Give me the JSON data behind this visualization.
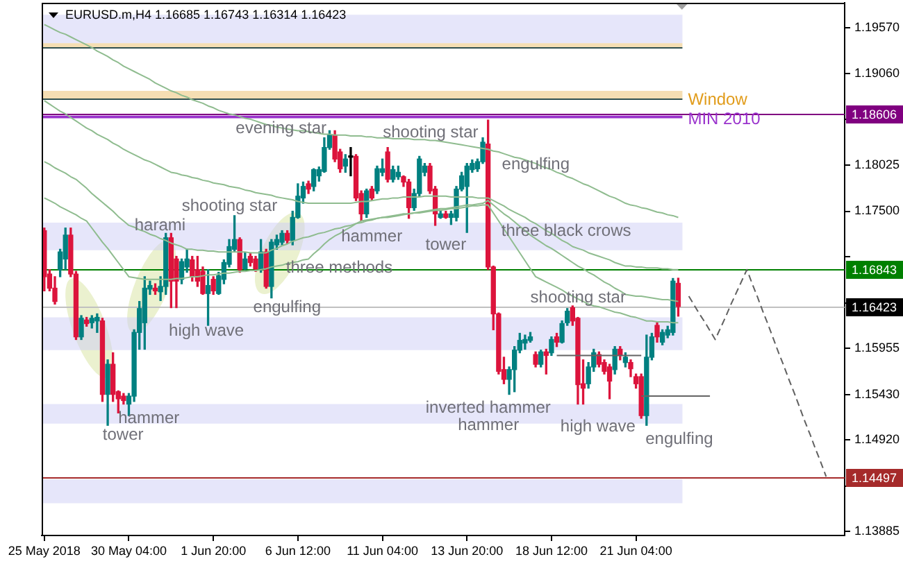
{
  "chart_data": {
    "type": "candlestick",
    "title": "EURUSD.m,H4 1.16685 1.16743 1.16314 1.16423",
    "categories": [
      "25 May 2018",
      null,
      null,
      null,
      null,
      null,
      null,
      null,
      null,
      null,
      null,
      null,
      null,
      null,
      null,
      null,
      "30 May 04:00",
      null,
      null,
      null,
      null,
      null,
      null,
      null,
      null,
      null,
      null,
      null,
      null,
      null,
      null,
      null,
      "1 Jun 20:00",
      null,
      null,
      null,
      null,
      null,
      null,
      null,
      null,
      null,
      null,
      null,
      null,
      null,
      null,
      null,
      "6 Jun 12:00",
      null,
      null,
      null,
      null,
      null,
      null,
      null,
      null,
      null,
      null,
      null,
      null,
      null,
      null,
      null,
      "11 Jun 04:00",
      null,
      null,
      null,
      null,
      null,
      null,
      null,
      null,
      null,
      null,
      null,
      null,
      null,
      null,
      null,
      "13 Jun 20:00",
      null,
      null,
      null,
      null,
      null,
      null,
      null,
      null,
      null,
      null,
      null,
      null,
      null,
      null,
      null,
      "18 Jun 12:00",
      null,
      null,
      null,
      null,
      null,
      null,
      null,
      null,
      null,
      null,
      null,
      null,
      null,
      null,
      null,
      "21 Jun 04:00",
      null,
      null,
      null,
      null,
      null,
      null,
      null,
      null,
      null,
      null,
      null,
      null,
      null,
      null,
      null,
      null,
      null,
      null,
      null,
      null,
      null,
      null,
      null,
      null,
      null,
      null,
      null,
      null,
      null,
      null,
      null,
      null,
      null,
      null,
      null,
      null,
      null,
      null,
      null
    ],
    "ohlc": [
      [
        1.1728,
        1.1731,
        1.166,
        1.1676
      ],
      [
        1.1679,
        1.1684,
        1.166,
        1.1663
      ],
      [
        1.1663,
        1.1676,
        1.1645,
        1.1648
      ],
      [
        1.1684,
        1.1707,
        1.1676,
        1.1704
      ],
      [
        1.1696,
        1.1731,
        1.1684,
        1.1723
      ],
      [
        1.1723,
        1.1731,
        1.1676,
        1.1679
      ],
      [
        1.1679,
        1.1682,
        1.1605,
        1.1608
      ],
      [
        1.1608,
        1.1632,
        1.1605,
        1.1629
      ],
      [
        1.1627,
        1.163,
        1.162,
        1.1623
      ],
      [
        1.1624,
        1.1632,
        1.1618,
        1.1629
      ],
      [
        1.1626,
        1.1634,
        1.1613,
        1.163
      ],
      [
        1.1626,
        1.1629,
        1.1535,
        1.1543
      ],
      [
        1.1543,
        1.1582,
        1.1508,
        1.1577
      ],
      [
        1.1577,
        1.159,
        1.1535,
        1.1543
      ],
      [
        1.1546,
        1.1547,
        1.1522,
        1.1538
      ],
      [
        1.1541,
        1.1544,
        1.1532,
        1.1536
      ],
      [
        1.1532,
        1.1544,
        1.1519,
        1.1541
      ],
      [
        1.1541,
        1.1616,
        1.1535,
        1.1613
      ],
      [
        1.1613,
        1.1648,
        1.1594,
        1.164
      ],
      [
        1.1624,
        1.1676,
        1.1594,
        1.1663
      ],
      [
        1.1662,
        1.1671,
        1.1656,
        1.1666
      ],
      [
        1.1663,
        1.1668,
        1.1656,
        1.166
      ],
      [
        1.1659,
        1.1676,
        1.1649,
        1.1665
      ],
      [
        1.1665,
        1.1725,
        1.1656,
        1.172
      ],
      [
        1.172,
        1.1725,
        1.1641,
        1.1671
      ],
      [
        1.1696,
        1.1699,
        1.1641,
        1.1671
      ],
      [
        1.1673,
        1.1696,
        1.1668,
        1.1693
      ],
      [
        1.1687,
        1.1707,
        1.1681,
        1.1696
      ],
      [
        1.1695,
        1.1699,
        1.1671,
        1.1676
      ],
      [
        1.1684,
        1.1699,
        1.1665,
        1.1671
      ],
      [
        1.1682,
        1.1687,
        1.1656,
        1.1657
      ],
      [
        1.1657,
        1.1684,
        1.1621,
        1.1666
      ],
      [
        1.1673,
        1.1676,
        1.1656,
        1.166
      ],
      [
        1.1657,
        1.1681,
        1.1656,
        1.1677
      ],
      [
        1.1673,
        1.1695,
        1.1668,
        1.1692
      ],
      [
        1.169,
        1.1718,
        1.1687,
        1.171
      ],
      [
        1.1707,
        1.1745,
        1.1704,
        1.1718
      ],
      [
        1.1718,
        1.172,
        1.1681,
        1.1684
      ],
      [
        1.1685,
        1.1703,
        1.1684,
        1.1696
      ],
      [
        1.1699,
        1.1703,
        1.1688,
        1.1692
      ],
      [
        1.1696,
        1.1699,
        1.1682,
        1.1685
      ],
      [
        1.1685,
        1.1718,
        1.1681,
        1.1704
      ],
      [
        1.1704,
        1.1707,
        1.1663,
        1.1665
      ],
      [
        1.1665,
        1.1718,
        1.1652,
        1.1715
      ],
      [
        1.1712,
        1.1723,
        1.1707,
        1.1718
      ],
      [
        1.1715,
        1.1728,
        1.1712,
        1.1725
      ],
      [
        1.1725,
        1.1728,
        1.1714,
        1.1717
      ],
      [
        1.1717,
        1.175,
        1.1712,
        1.1743
      ],
      [
        1.1743,
        1.1781,
        1.1742,
        1.1767
      ],
      [
        1.1765,
        1.1783,
        1.1759,
        1.1778
      ],
      [
        1.1781,
        1.1784,
        1.177,
        1.1775
      ],
      [
        1.1778,
        1.1798,
        1.1773,
        1.1797
      ],
      [
        1.179,
        1.18,
        1.1784,
        1.1797
      ],
      [
        1.1795,
        1.1833,
        1.1794,
        1.1822
      ],
      [
        1.1822,
        1.1841,
        1.182,
        1.1836
      ],
      [
        1.1836,
        1.1841,
        1.1806,
        1.1809
      ],
      [
        1.1817,
        1.182,
        1.1794,
        1.1798
      ],
      [
        1.1801,
        1.1814,
        1.1794,
        1.1809
      ],
      [
        1.1812,
        1.1822,
        1.179,
        1.1811
      ],
      [
        1.1812,
        1.1814,
        1.1762,
        1.1765
      ],
      [
        1.177,
        1.1773,
        1.1739,
        1.1747
      ],
      [
        1.1747,
        1.1775,
        1.1743,
        1.1773
      ],
      [
        1.1775,
        1.1778,
        1.1762,
        1.1765
      ],
      [
        1.1773,
        1.1801,
        1.177,
        1.1798
      ],
      [
        1.1794,
        1.1809,
        1.179,
        1.1798
      ],
      [
        1.1817,
        1.1822,
        1.1783,
        1.1786
      ],
      [
        1.1786,
        1.1801,
        1.1783,
        1.1797
      ],
      [
        1.1789,
        1.1801,
        1.1786,
        1.1794
      ],
      [
        1.1789,
        1.179,
        1.1778,
        1.1783
      ],
      [
        1.1783,
        1.1786,
        1.1742,
        1.1754
      ],
      [
        1.1754,
        1.1775,
        1.1751,
        1.177
      ],
      [
        1.177,
        1.1812,
        1.1767,
        1.1809
      ],
      [
        1.1794,
        1.1804,
        1.179,
        1.1801
      ],
      [
        1.1801,
        1.1804,
        1.177,
        1.1773
      ],
      [
        1.1775,
        1.1778,
        1.1734,
        1.1747
      ],
      [
        1.1743,
        1.1751,
        1.1742,
        1.1747
      ],
      [
        1.1747,
        1.175,
        1.1742,
        1.1743
      ],
      [
        1.1743,
        1.175,
        1.1735,
        1.1747
      ],
      [
        1.1743,
        1.1778,
        1.1739,
        1.1775
      ],
      [
        1.1775,
        1.1794,
        1.1773,
        1.179
      ],
      [
        1.1778,
        1.1804,
        1.1726,
        1.1801
      ],
      [
        1.1797,
        1.1808,
        1.1794,
        1.1804
      ],
      [
        1.1798,
        1.1809,
        1.1795,
        1.1806
      ],
      [
        1.1806,
        1.1833,
        1.1804,
        1.1828
      ],
      [
        1.1826,
        1.1853,
        1.1684,
        1.1687
      ],
      [
        1.1687,
        1.1688,
        1.1616,
        1.1634
      ],
      [
        1.1634,
        1.1635,
        1.1566,
        1.1569
      ],
      [
        1.1571,
        1.1585,
        1.1555,
        1.156
      ],
      [
        1.156,
        1.1574,
        1.1543,
        1.1571
      ],
      [
        1.1571,
        1.1597,
        1.1546,
        1.1593
      ],
      [
        1.1593,
        1.1612,
        1.159,
        1.1604
      ],
      [
        1.1601,
        1.161,
        1.1594,
        1.1605
      ],
      [
        1.1604,
        1.1613,
        1.1602,
        1.1608
      ],
      [
        1.1588,
        1.1591,
        1.1574,
        1.1577
      ],
      [
        1.1577,
        1.1593,
        1.1574,
        1.1591
      ],
      [
        1.1591,
        1.1594,
        1.1566,
        1.1587
      ],
      [
        1.159,
        1.1608,
        1.1587,
        1.1605
      ],
      [
        1.1608,
        1.1612,
        1.1597,
        1.1602
      ],
      [
        1.1602,
        1.1626,
        1.1601,
        1.1623
      ],
      [
        1.1624,
        1.164,
        1.1621,
        1.1637
      ],
      [
        1.1641,
        1.1643,
        1.1621,
        1.1626
      ],
      [
        1.1629,
        1.163,
        1.1532,
        1.1554
      ],
      [
        1.1555,
        1.1582,
        1.1532,
        1.155
      ],
      [
        1.1555,
        1.1579,
        1.155,
        1.1574
      ],
      [
        1.1574,
        1.1594,
        1.1569,
        1.159
      ],
      [
        1.1588,
        1.1591,
        1.1574,
        1.1577
      ],
      [
        1.1579,
        1.1582,
        1.1566,
        1.1569
      ],
      [
        1.1574,
        1.1577,
        1.1538,
        1.1558
      ],
      [
        1.1571,
        1.1597,
        1.1566,
        1.1594
      ],
      [
        1.1594,
        1.1597,
        1.1582,
        1.1587
      ],
      [
        1.1579,
        1.159,
        1.1574,
        1.1585
      ],
      [
        1.1579,
        1.1582,
        1.1563,
        1.1572
      ],
      [
        1.1563,
        1.1566,
        1.155,
        1.1555
      ],
      [
        1.1563,
        1.1566,
        1.1516,
        1.1519
      ],
      [
        1.1519,
        1.161,
        1.1508,
        1.1585
      ],
      [
        1.1585,
        1.1612,
        1.1582,
        1.1608
      ],
      [
        1.1621,
        1.1624,
        1.1602,
        1.1608
      ],
      [
        1.1602,
        1.1616,
        1.1599,
        1.1613
      ],
      [
        1.161,
        1.162,
        1.1607,
        1.1616
      ],
      [
        1.1613,
        1.1674,
        1.161,
        1.1671
      ],
      [
        1.16685,
        1.16743,
        1.16314,
        1.16423
      ],
      null,
      null,
      null,
      null,
      null,
      null,
      null,
      null,
      null,
      null,
      null,
      null,
      null,
      null,
      null,
      null,
      null,
      null,
      null,
      null,
      null,
      null,
      null,
      null,
      null,
      null,
      null,
      null,
      null,
      null,
      null
    ],
    "colors": [
      "#dc143c",
      "#dc143c",
      "#dc143c",
      "#008080",
      "#008080",
      "#dc143c",
      "#dc143c",
      "#008080",
      "#dc143c",
      "#008080",
      "#008080",
      "#dc143c",
      "#008080",
      "#dc143c",
      "#dc143c",
      "#dc143c",
      "#008080",
      "#008080",
      "#008080",
      "#008080",
      "#008080",
      "#dc143c",
      "#008080",
      "#008080",
      "#dc143c",
      "#dc143c",
      "#008080",
      "#008080",
      "#dc143c",
      "#dc143c",
      "#dc143c",
      "#008080",
      "#dc143c",
      "#008080",
      "#008080",
      "#008080",
      "#008080",
      "#dc143c",
      "#008080",
      "#dc143c",
      "#dc143c",
      "#008080",
      "#dc143c",
      "#008080",
      "#008080",
      "#008080",
      "#dc143c",
      "#008080",
      "#008080",
      "#008080",
      "#dc143c",
      "#008080",
      "#008080",
      "#008080",
      "#008080",
      "#dc143c",
      "#dc143c",
      "#008080",
      "#000000",
      "#dc143c",
      "#dc143c",
      "#008080",
      "#dc143c",
      "#008080",
      "#008080",
      "#dc143c",
      "#008080",
      "#008080",
      "#dc143c",
      "#dc143c",
      "#008080",
      "#008080",
      "#008080",
      "#dc143c",
      "#dc143c",
      "#008080",
      "#dc143c",
      "#008080",
      "#008080",
      "#008080",
      "#008080",
      "#008080",
      "#008080",
      "#008080",
      "#dc143c",
      "#dc143c",
      "#dc143c",
      "#dc143c",
      "#008080",
      "#008080",
      "#008080",
      "#008080",
      "#008080",
      "#dc143c",
      "#008080",
      "#dc143c",
      "#008080",
      "#dc143c",
      "#008080",
      "#008080",
      "#dc143c",
      "#dc143c",
      "#dc143c",
      "#008080",
      "#008080",
      "#dc143c",
      "#dc143c",
      "#dc143c",
      "#008080",
      "#dc143c",
      "#008080",
      "#dc143c",
      "#dc143c",
      "#dc143c",
      "#008080",
      "#008080",
      "#dc143c",
      "#008080",
      "#008080",
      "#008080",
      "#dc143c",
      null,
      null,
      null,
      null,
      null,
      null,
      null,
      null,
      null,
      null,
      null,
      null,
      null,
      null,
      null,
      null,
      null,
      null,
      null,
      null,
      null,
      null,
      null,
      null,
      null,
      null,
      null,
      null,
      null,
      null,
      null
    ],
    "series": [
      {
        "type": "line",
        "color": "#8fbc8f",
        "values": [
          1.1961,
          1.1958,
          1.1955,
          1.1952,
          1.195,
          1.1947,
          1.1944,
          1.1941,
          1.1938,
          1.1935,
          1.1931,
          1.1928,
          1.1925,
          1.1921,
          1.1918,
          1.1914,
          1.1911,
          1.1908,
          1.1905,
          1.1902,
          1.1899,
          1.1895,
          1.1892,
          1.1889,
          1.1886,
          1.1884,
          1.1881,
          1.1879,
          1.1876,
          1.1874,
          1.1872,
          1.1869,
          1.1867,
          1.1864,
          1.1862,
          1.186,
          1.1859,
          1.1857,
          1.1855,
          1.1854,
          1.1852,
          1.185,
          1.1848,
          1.1847,
          1.1845,
          1.1844,
          1.1843,
          1.1842,
          1.1841,
          1.1841,
          1.184,
          1.1839,
          1.1838,
          1.1837,
          1.1837,
          1.1836,
          1.1836,
          1.1836,
          1.1835,
          1.1835,
          1.1835,
          1.1834,
          1.1834,
          1.1833,
          1.1833,
          1.1833,
          1.1832,
          1.1832,
          1.1832,
          1.1832,
          1.1831,
          1.1831,
          1.1831,
          1.183,
          1.183,
          1.1829,
          1.1828,
          1.1827,
          1.1826,
          1.1825,
          1.1824,
          1.1823,
          1.1822,
          1.1821,
          1.182,
          1.1818,
          1.1817,
          1.1815,
          1.1813,
          1.1811,
          1.181,
          1.1808,
          1.1806,
          1.1804,
          1.1801,
          1.1799,
          1.1797,
          1.1794,
          1.1792,
          1.1789,
          1.1787,
          1.1784,
          1.1781,
          1.1779,
          1.1776,
          1.1773,
          1.177,
          1.1767,
          1.1765,
          1.1762,
          1.1759,
          1.1757,
          1.1756,
          1.1754,
          1.1753,
          1.1751,
          1.1749,
          1.1748,
          1.1746,
          1.1745,
          1.1743,
          null,
          null,
          null,
          null,
          null,
          null,
          null,
          null,
          null,
          null,
          null,
          null,
          null,
          null,
          null,
          null,
          null,
          null,
          null,
          null,
          null,
          null,
          null,
          null,
          null,
          null,
          null,
          null,
          null,
          null,
          null
        ]
      },
      {
        "type": "line",
        "color": "#8fbc8f",
        "values": [
          1.1875,
          1.1871,
          1.1867,
          1.1863,
          1.186,
          1.1856,
          1.1852,
          1.1848,
          1.1844,
          1.1841,
          1.1837,
          1.1834,
          1.1831,
          1.1827,
          1.1824,
          1.182,
          1.1817,
          1.1814,
          1.1811,
          1.1808,
          1.1806,
          1.1803,
          1.18,
          1.1797,
          1.1794,
          1.1793,
          1.1791,
          1.179,
          1.1788,
          1.1787,
          1.1785,
          1.1784,
          1.1782,
          1.1781,
          1.178,
          1.1778,
          1.1777,
          1.1776,
          1.1774,
          1.1773,
          1.1771,
          1.177,
          1.1769,
          1.1768,
          1.1766,
          1.1765,
          1.1764,
          1.1763,
          1.1761,
          1.176,
          1.1759,
          1.1759,
          1.1759,
          1.1759,
          1.1759,
          1.1759,
          1.1759,
          1.1759,
          1.1759,
          1.176,
          1.1761,
          1.1761,
          1.1762,
          1.1763,
          1.1764,
          1.1764,
          1.1765,
          1.1765,
          1.1766,
          1.1766,
          1.1766,
          1.1766,
          1.1767,
          1.1767,
          1.1767,
          1.1767,
          1.1767,
          1.1766,
          1.1766,
          1.1766,
          1.1766,
          1.1766,
          1.1765,
          1.1765,
          1.1765,
          1.1762,
          1.1759,
          1.1756,
          1.1752,
          1.1749,
          1.1746,
          1.1743,
          1.1739,
          1.1736,
          1.1732,
          1.1728,
          1.1725,
          1.1721,
          1.1717,
          1.1714,
          1.171,
          1.1708,
          1.1706,
          1.1703,
          1.1701,
          1.1699,
          1.1697,
          1.1695,
          1.1692,
          1.169,
          1.1688,
          1.1688,
          1.1687,
          1.1687,
          1.1686,
          1.1686,
          1.1686,
          1.1685,
          1.1685,
          1.1684,
          1.1684,
          null,
          null,
          null,
          null,
          null,
          null,
          null,
          null,
          null,
          null,
          null,
          null,
          null,
          null,
          null,
          null,
          null,
          null,
          null,
          null,
          null,
          null,
          null,
          null,
          null,
          null,
          null,
          null,
          null,
          null,
          null
        ]
      },
      {
        "type": "line",
        "color": "#8fbc8f",
        "values": [
          1.1806,
          1.1803,
          1.1799,
          1.1796,
          1.1793,
          1.1789,
          1.1786,
          1.1781,
          1.1776,
          1.177,
          1.1765,
          1.176,
          1.1755,
          1.175,
          1.1744,
          1.1739,
          1.1734,
          1.1732,
          1.1729,
          1.1727,
          1.1724,
          1.1722,
          1.1719,
          1.1717,
          1.1714,
          1.1712,
          1.171,
          1.1707,
          1.1707,
          1.1706,
          1.1706,
          1.1705,
          1.1705,
          1.1704,
          1.1704,
          1.1704,
          1.1704,
          1.1704,
          1.1704,
          1.1703,
          1.1703,
          1.1703,
          1.1703,
          1.1706,
          1.1708,
          1.1711,
          1.1713,
          1.1716,
          1.1718,
          1.172,
          1.1721,
          1.1723,
          1.1725,
          1.1726,
          1.1728,
          1.173,
          1.1731,
          1.1733,
          1.1734,
          1.1736,
          1.1737,
          1.1739,
          1.174,
          1.1742,
          1.1743,
          1.1744,
          1.1745,
          1.1746,
          1.1747,
          1.1747,
          1.1748,
          1.1749,
          1.175,
          1.1751,
          1.1752,
          1.1753,
          1.1753,
          1.1754,
          1.1755,
          1.1756,
          1.1757,
          1.1757,
          1.1758,
          1.1759,
          1.1762,
          1.1757,
          1.1752,
          1.1747,
          1.1743,
          1.1738,
          1.1733,
          1.1728,
          1.1723,
          1.1719,
          1.1715,
          1.1711,
          1.1708,
          1.1704,
          1.17,
          1.1696,
          1.1692,
          1.1688,
          1.1685,
          1.1681,
          1.1678,
          1.1674,
          1.167,
          1.1667,
          1.1663,
          1.166,
          1.1656,
          1.1655,
          1.1654,
          1.1654,
          1.1653,
          1.1652,
          1.1651,
          1.165,
          1.165,
          1.1649,
          1.1648,
          null,
          null,
          null,
          null,
          null,
          null,
          null,
          null,
          null,
          null,
          null,
          null,
          null,
          null,
          null,
          null,
          null,
          null,
          null,
          null,
          null,
          null,
          null,
          null,
          null,
          null,
          null,
          null,
          null,
          null,
          null
        ]
      },
      {
        "type": "line",
        "color": "#8fbc8f",
        "values": [
          1.1765,
          1.1762,
          1.1759,
          1.1755,
          1.1752,
          1.1749,
          1.1746,
          1.1742,
          1.1739,
          1.1731,
          1.1723,
          1.1715,
          1.1708,
          1.17,
          1.1692,
          1.1684,
          1.1676,
          1.1675,
          1.1674,
          1.1673,
          1.1673,
          1.1673,
          1.1673,
          1.1673,
          1.1673,
          1.1674,
          1.1674,
          1.1675,
          1.1676,
          1.1676,
          1.1677,
          1.1678,
          1.1678,
          1.1679,
          1.168,
          1.168,
          1.1681,
          1.1682,
          1.1682,
          1.1683,
          1.1683,
          1.1684,
          1.1685,
          1.1687,
          1.1688,
          1.1689,
          1.1691,
          1.1692,
          1.1693,
          1.1695,
          1.1696,
          1.1702,
          1.1707,
          1.1713,
          1.1718,
          1.1722,
          1.1725,
          1.1729,
          1.1732,
          1.1736,
          1.1739,
          1.174,
          1.1741,
          1.1742,
          1.1743,
          1.1743,
          1.1744,
          1.1745,
          1.1746,
          1.1747,
          1.1748,
          1.1748,
          1.1749,
          1.175,
          1.1751,
          1.1751,
          1.1752,
          1.1753,
          1.1753,
          1.1754,
          1.1755,
          1.1756,
          1.1756,
          1.1757,
          1.1757,
          1.1748,
          1.1739,
          1.173,
          1.1721,
          1.1712,
          1.1703,
          1.1694,
          1.1685,
          1.1676,
          1.1673,
          1.167,
          1.1667,
          1.1664,
          1.1661,
          1.1657,
          1.1654,
          1.1651,
          1.1648,
          1.1645,
          1.1643,
          1.1642,
          1.164,
          1.1638,
          1.1636,
          1.1635,
          1.1633,
          1.1631,
          1.163,
          1.1628,
          1.1626,
          1.1626,
          1.1625,
          1.1625,
          1.1625,
          1.1624,
          1.1624,
          null,
          null,
          null,
          null,
          null,
          null,
          null,
          null,
          null,
          null,
          null,
          null,
          null,
          null,
          null,
          null,
          null,
          null,
          null,
          null,
          null,
          null,
          null,
          null,
          null,
          null,
          null,
          null,
          null,
          null,
          null
        ]
      },
      {
        "type": "line",
        "color": "#606060",
        "line_style": "dashed",
        "values": [
          null,
          null,
          null,
          null,
          null,
          null,
          null,
          null,
          null,
          null,
          null,
          null,
          null,
          null,
          null,
          null,
          null,
          null,
          null,
          null,
          null,
          null,
          null,
          null,
          null,
          null,
          null,
          null,
          null,
          null,
          null,
          null,
          null,
          null,
          null,
          null,
          null,
          null,
          null,
          null,
          null,
          null,
          null,
          null,
          null,
          null,
          null,
          null,
          null,
          null,
          null,
          null,
          null,
          null,
          null,
          null,
          null,
          null,
          null,
          null,
          null,
          null,
          null,
          null,
          null,
          null,
          null,
          null,
          null,
          null,
          null,
          null,
          null,
          null,
          null,
          null,
          null,
          null,
          null,
          null,
          null,
          null,
          null,
          null,
          null,
          null,
          null,
          null,
          null,
          null,
          null,
          null,
          null,
          null,
          null,
          null,
          null,
          null,
          null,
          null,
          null,
          null,
          null,
          null,
          null,
          null,
          null,
          null,
          null,
          null,
          null,
          null,
          null,
          null,
          null,
          null,
          null,
          null,
          null,
          null,
          null,
          null,
          1.1654,
          1.1644,
          1.1634,
          1.1625,
          1.1615,
          1.1605,
          1.1618,
          1.1631,
          1.1645,
          1.1658,
          1.1671,
          1.1684,
          1.1668,
          1.1653,
          1.1637,
          1.1622,
          1.1606,
          1.159,
          1.1575,
          1.1559,
          1.1544,
          1.1528,
          1.1512,
          1.1497,
          1.1481,
          1.1466,
          1.145,
          null,
          null,
          null
        ]
      },
      {
        "type": "line",
        "color": "#646464",
        "values": [
          null,
          null,
          null,
          null,
          null,
          null,
          null,
          null,
          null,
          null,
          null,
          null,
          null,
          null,
          null,
          null,
          null,
          null,
          null,
          null,
          null,
          null,
          null,
          null,
          null,
          null,
          null,
          null,
          null,
          null,
          null,
          null,
          null,
          null,
          null,
          null,
          null,
          null,
          null,
          null,
          null,
          null,
          null,
          null,
          null,
          null,
          null,
          null,
          null,
          null,
          null,
          null,
          null,
          null,
          null,
          null,
          null,
          null,
          null,
          null,
          null,
          null,
          null,
          null,
          null,
          null,
          null,
          null,
          null,
          null,
          null,
          null,
          null,
          null,
          null,
          null,
          null,
          null,
          null,
          null,
          null,
          null,
          null,
          null,
          null,
          null,
          null,
          null,
          null,
          null,
          null,
          null,
          null,
          null,
          null,
          null,
          null,
          1.1587,
          1.1587,
          1.1587,
          1.1587,
          1.1587,
          1.1587,
          1.1587,
          1.1587,
          1.1587,
          1.1587,
          1.1587,
          1.1587,
          1.1587,
          1.1587,
          1.1587,
          1.1587,
          1.1587,
          null,
          null,
          null,
          null,
          null,
          null,
          null,
          null,
          null,
          null,
          null,
          null,
          null,
          null,
          null,
          null,
          null,
          null,
          null,
          null,
          null,
          null,
          null,
          null,
          null,
          null,
          null,
          null,
          null,
          null,
          null,
          null,
          null,
          null,
          null,
          null,
          null,
          null
        ]
      },
      {
        "type": "line",
        "color": "#646464",
        "values": [
          null,
          null,
          null,
          null,
          null,
          null,
          null,
          null,
          null,
          null,
          null,
          null,
          null,
          null,
          null,
          null,
          null,
          null,
          null,
          null,
          null,
          null,
          null,
          null,
          null,
          null,
          null,
          null,
          null,
          null,
          null,
          null,
          null,
          null,
          null,
          null,
          null,
          null,
          null,
          null,
          null,
          null,
          null,
          null,
          null,
          null,
          null,
          null,
          null,
          null,
          null,
          null,
          null,
          null,
          null,
          null,
          null,
          null,
          null,
          null,
          null,
          null,
          null,
          null,
          null,
          null,
          null,
          null,
          null,
          null,
          null,
          null,
          null,
          null,
          null,
          null,
          null,
          null,
          null,
          null,
          null,
          null,
          null,
          null,
          null,
          null,
          null,
          null,
          null,
          null,
          null,
          null,
          null,
          null,
          null,
          null,
          null,
          null,
          null,
          null,
          null,
          null,
          null,
          null,
          null,
          null,
          null,
          null,
          null,
          null,
          null,
          null,
          null,
          1.1541,
          1.1541,
          1.1541,
          1.1541,
          1.1541,
          1.1541,
          1.1541,
          1.1541,
          1.1541,
          1.1541,
          1.1541,
          1.1541,
          1.1541,
          1.1541,
          null,
          null,
          null,
          null,
          null,
          null,
          null,
          null,
          null,
          null,
          null,
          null,
          null,
          null,
          null,
          null,
          null,
          null,
          null,
          null,
          null,
          null,
          null,
          null,
          null
        ]
      }
    ],
    "ylim": [
      1.13835,
      1.19856
    ],
    "yticks": [
      {
        "value": 1.1957,
        "label": "1.19570"
      },
      {
        "value": 1.1906,
        "label": "1.19060"
      },
      {
        "value": 1.18535,
        "label": null
      },
      {
        "value": 1.18025,
        "label": "1.18025"
      },
      {
        "value": 1.175,
        "label": "1.17500"
      },
      {
        "value": 1.1699,
        "label": null
      },
      {
        "value": 1.16465,
        "label": null
      },
      {
        "value": 1.15955,
        "label": "1.15955"
      },
      {
        "value": 1.1543,
        "label": "1.15430"
      },
      {
        "value": 1.1492,
        "label": "1.14920"
      },
      {
        "value": 1.14395,
        "label": null
      },
      {
        "value": 1.13885,
        "label": "1.13885"
      }
    ],
    "bands": [
      {
        "axis": "y",
        "from": 1.194,
        "to": 1.1972,
        "color": "#e6e6fa"
      },
      {
        "axis": "y",
        "from": 1.1935,
        "to": 1.194,
        "color": "#f5deb3"
      },
      {
        "axis": "y",
        "from": 1.1877,
        "to": 1.1886,
        "color": "#f5deb3",
        "label": "Window"
      },
      {
        "axis": "y",
        "from": 1.1855,
        "to": 1.1858,
        "color": "#9932cc",
        "label": "MIN 2010"
      },
      {
        "axis": "y",
        "from": 1.1706,
        "to": 1.1737,
        "color": "#e6e6fa"
      },
      {
        "axis": "y",
        "from": 1.1593,
        "to": 1.163,
        "color": "#e6e6fa"
      },
      {
        "axis": "y",
        "from": 1.151,
        "to": 1.1532,
        "color": "#e6e6fa"
      },
      {
        "axis": "y",
        "from": 1.142,
        "to": 1.1447,
        "color": "#e6e6fa"
      }
    ],
    "ref_lines": [
      {
        "axis": "y",
        "value": 1.1935,
        "color": "#2f4f4f"
      },
      {
        "axis": "y",
        "value": 1.1877,
        "color": "#2f4f4f"
      },
      {
        "axis": "y",
        "value": 1.18606,
        "label": "1.18606",
        "color": "#800080"
      },
      {
        "axis": "y",
        "value": 1.16843,
        "label": "1.16843",
        "color": "#008000"
      },
      {
        "axis": "y",
        "value": 1.16423,
        "label": "1.16423",
        "color": "#c0c0c0"
      },
      {
        "axis": "y",
        "value": 1.14497,
        "label": "1.14497",
        "color": "#a52a2a"
      }
    ],
    "annotations": [
      "evening star",
      "shooting star",
      "engulfing",
      "harami",
      "shooting star",
      "hammer",
      "tower",
      "three black crows",
      "three methods",
      "engulfing",
      "high wave",
      "shooting star",
      "hammer",
      "tower",
      "inverted hammer",
      "hammer",
      "high wave",
      "engulfing"
    ]
  }
}
